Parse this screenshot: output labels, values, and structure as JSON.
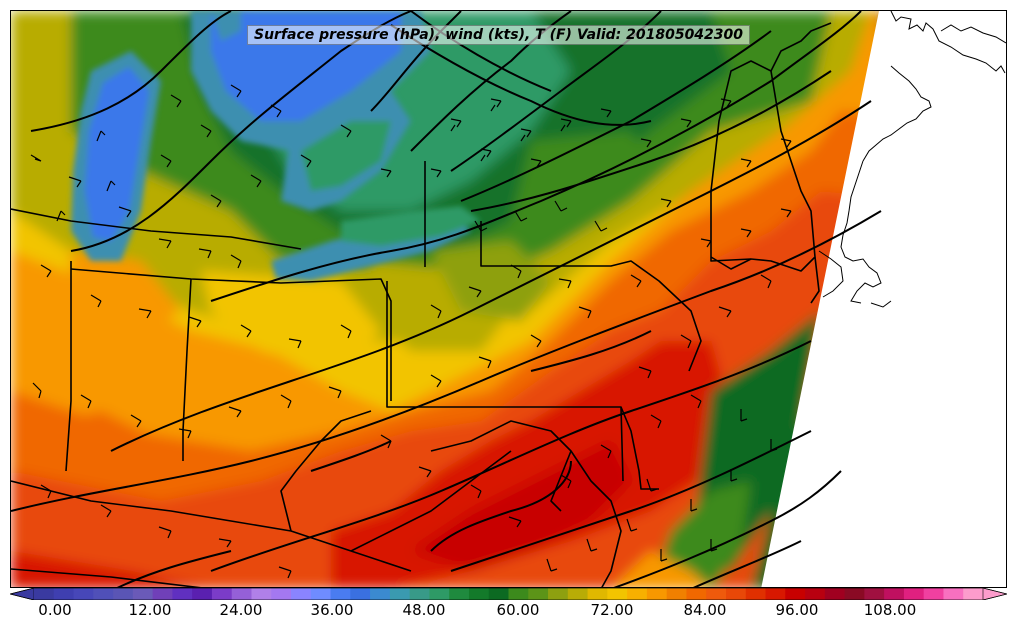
{
  "title": "Surface pressure (hPa), wind (kts), T (F) Valid: 201805042300",
  "colorbar": {
    "tick_labels": [
      "0.00",
      "12.00",
      "24.00",
      "36.00",
      "48.00",
      "60.00",
      "72.00",
      "84.00",
      "96.00",
      "108.00"
    ],
    "colors": [
      "#3a3aa0",
      "#3f3fb0",
      "#4747b8",
      "#5050b8",
      "#5a55b5",
      "#6a5ab8",
      "#7040b8",
      "#6030c0",
      "#5a20b0",
      "#7b3cc8",
      "#9560d8",
      "#b080e8",
      "#a478f0",
      "#8a84ff",
      "#6f8cff",
      "#4a7cf0",
      "#3a70e0",
      "#3b8ad0",
      "#3a9ab0",
      "#389a88",
      "#2e9a66",
      "#1f8a3e",
      "#137a2a",
      "#0c6a22",
      "#3c8a1c",
      "#5c9418",
      "#8ea010",
      "#b8ac06",
      "#e0b800",
      "#f2c400",
      "#f8b000",
      "#f89800",
      "#f08000",
      "#f06800",
      "#ee5a0c",
      "#e84808",
      "#e03000",
      "#d81800",
      "#c80000",
      "#b80010",
      "#a00020",
      "#8a0a24",
      "#a01040",
      "#c01060",
      "#e02080",
      "#f040a0",
      "#f870c0",
      "#fc9ccc"
    ]
  },
  "map": {
    "fill_colors": {
      "lake": "#3b78ea",
      "lake_edge": "#3d8fb0",
      "cool_teal": "#2e9a66",
      "dark_green": "#12722a",
      "green": "#3c8a1c",
      "olive": "#8ea010",
      "olive_yellow": "#b8ac06",
      "yellow": "#f2c400",
      "orange": "#f89800",
      "dark_orange": "#f06800",
      "red_orange": "#e84808",
      "red": "#d81800",
      "deep_red": "#c80000",
      "ocean_green": "#0c6a22",
      "land_blank": "#ffffff"
    },
    "line_color": "#000000"
  }
}
